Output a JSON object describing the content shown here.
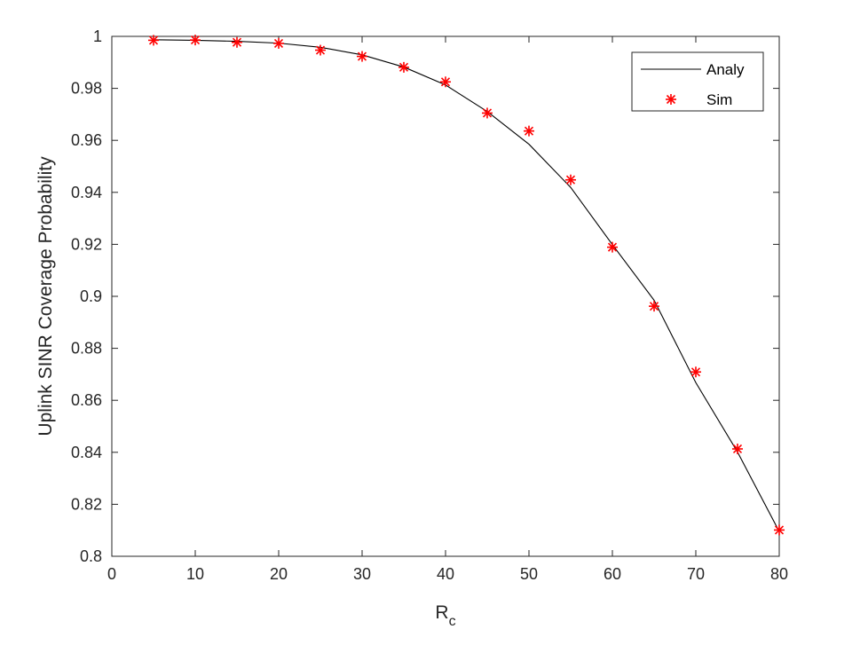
{
  "chart_data": {
    "type": "line",
    "title": "",
    "xlabel": "R",
    "xlabel_subscript": "c",
    "ylabel": "Uplink SINR Coverage Probability",
    "xlim": [
      0,
      80
    ],
    "ylim": [
      0.8,
      1
    ],
    "xticks": [
      "0",
      "10",
      "20",
      "30",
      "40",
      "50",
      "60",
      "70",
      "80"
    ],
    "yticks": [
      "0.8",
      "0.82",
      "0.84",
      "0.86",
      "0.88",
      "0.9",
      "0.92",
      "0.94",
      "0.96",
      "0.98",
      "1"
    ],
    "grid": false,
    "legend_position": "top-right",
    "x": [
      5,
      10,
      15,
      20,
      25,
      30,
      35,
      40,
      45,
      50,
      55,
      60,
      65,
      70,
      75,
      80
    ],
    "series": [
      {
        "name": "Analy",
        "style": "line",
        "color": "#000000",
        "values": [
          0.9987,
          0.9985,
          0.9981,
          0.9974,
          0.9958,
          0.9929,
          0.9882,
          0.9813,
          0.9711,
          0.9585,
          0.9419,
          0.9199,
          0.8985,
          0.8668,
          0.8401,
          0.8095
        ]
      },
      {
        "name": "Sim",
        "style": "marker",
        "marker": "asterisk",
        "color": "#ff0000",
        "values": [
          0.9985,
          0.9986,
          0.9977,
          0.9973,
          0.9947,
          0.9923,
          0.9881,
          0.9825,
          0.9705,
          0.9636,
          0.9448,
          0.9189,
          0.8962,
          0.8709,
          0.8413,
          0.8101
        ]
      }
    ]
  }
}
